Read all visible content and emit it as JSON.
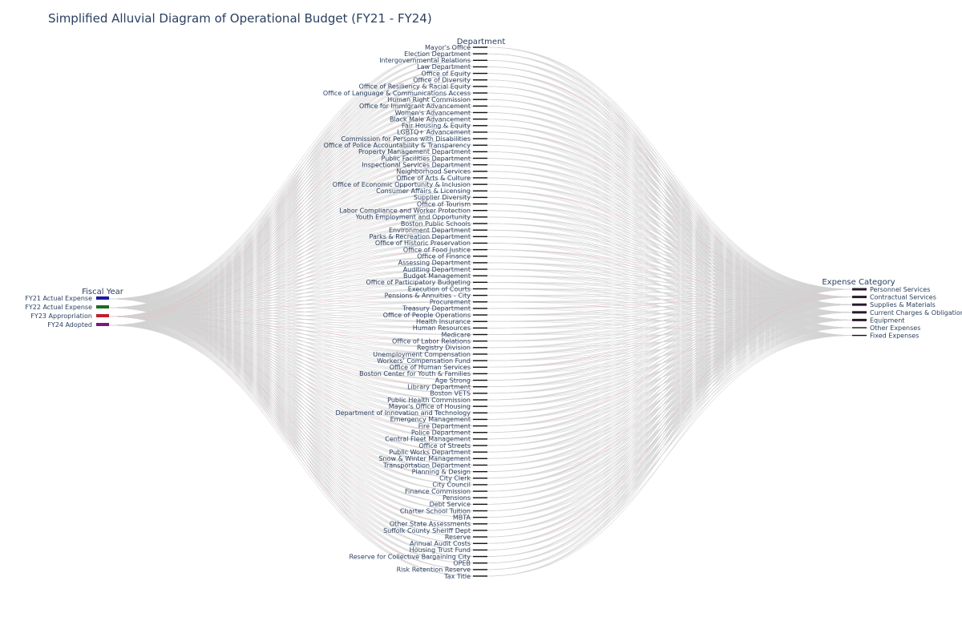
{
  "chart_data": {
    "type": "alluvial",
    "title": "Simplified Alluvial Diagram of Operational Budget (FY21 - FY24)",
    "dimensions": [
      "Fiscal Year",
      "Department",
      "Expense Category"
    ],
    "fiscal_years": [
      {
        "label": "FY21 Actual Expense",
        "color": "#1a1aa6"
      },
      {
        "label": "FY22 Actual Expense",
        "color": "#1f6b1f"
      },
      {
        "label": "FY23 Appropriation",
        "color": "#c0202a"
      },
      {
        "label": "FY24 Adopted",
        "color": "#7a1a7a"
      }
    ],
    "departments": [
      "Mayor's Office",
      "Election Department",
      "Intergovernmental Relations",
      "Law Department",
      "Office of Equity",
      "Office of Diversity",
      "Office of Resiliency & Racial Equity",
      "Office of Language & Communications Access",
      "Human Right Commission",
      "Office for Immigrant Advancement",
      "Women's Advancement",
      "Black Male Advancement",
      "Fair Housing & Equity",
      "LGBTQ+ Advancement",
      "Commission for Persons with Disabilities",
      "Office of Police Accountability & Transparency",
      "Property Management Department",
      "Public Facilities Department",
      "Inspectional Services Department",
      "Neighborhood Services",
      "Office of Arts & Culture",
      "Office of Economic Opportunity & Inclusion",
      "Consumer Affairs & Licensing",
      "Supplier Diversity",
      "Office of Tourism",
      "Labor Compliance and Worker Protection",
      "Youth Employment and Opportunity",
      "Boston Public Schools",
      "Environment Department",
      "Parks & Recreation Department",
      "Office of Historic Preservation",
      "Office of Food Justice",
      "Office of Finance",
      "Assessing Department",
      "Auditing Department",
      "Budget Management",
      "Office of Participatory Budgeting",
      "Execution of Courts",
      "Pensions & Annuities - City",
      "Procurement",
      "Treasury Department",
      "Office of People Operations",
      "Health Insurance",
      "Human Resources",
      "Medicare",
      "Office of Labor Relations",
      "Registry Division",
      "Unemployment Compensation",
      "Workers' Compensation Fund",
      "Office of Human Services",
      "Boston Center for Youth & Families",
      "Age Strong",
      "Library Department",
      "Boston VETS",
      "Public Health Commission",
      "Mayor's Office of Housing",
      "Department of Innovation and Technology",
      "Emergency Management",
      "Fire Department",
      "Police Department",
      "Central Fleet Management",
      "Office of Streets",
      "Public Works Department",
      "Snow & Winter Management",
      "Transportation Department",
      "Planning & Design",
      "City Clerk",
      "City Council",
      "Finance Commission",
      "Pensions",
      "Debt Service",
      "Charter School Tuition",
      "MBTA",
      "Other State Assessments",
      "Suffolk County Sheriff Dept",
      "Reserve",
      "Annual Audit Costs",
      "Housing Trust Fund",
      "Reserve for Collective Bargaining City",
      "OPEB",
      "Risk Retention Reserve",
      "Tax Title"
    ],
    "expense_categories": [
      "Personnel Services",
      "Contractual Services",
      "Supplies & Materials",
      "Current Charges & Obligations",
      "Equipment",
      "Other Expenses",
      "Fixed Expenses"
    ],
    "link_color": "#d3d3d3",
    "highlight_link_color": "#e8b4b8"
  }
}
